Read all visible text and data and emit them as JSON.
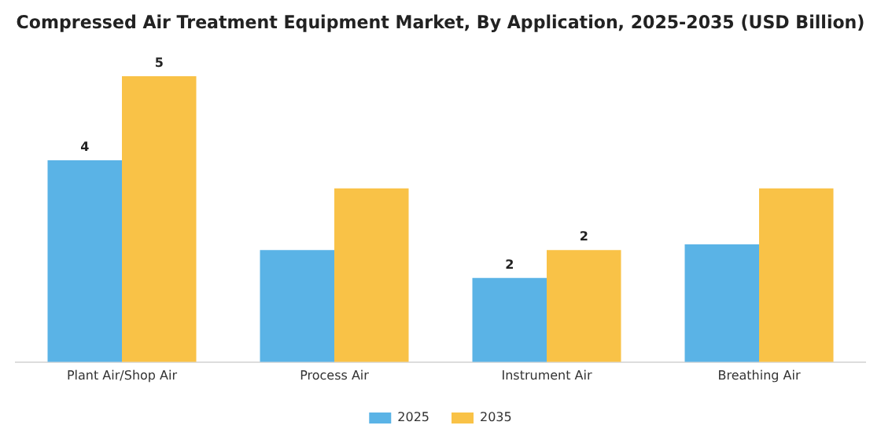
{
  "chart_data": {
    "type": "bar",
    "title": "Compressed Air Treatment Equipment Market, By Application, 2025-2035 (USD Billion)",
    "categories": [
      "Plant Air/Shop Air",
      "Process Air",
      "Instrument Air",
      "Breathing Air"
    ],
    "series": [
      {
        "name": "2025",
        "color": "#5ab3e6",
        "values": [
          3.6,
          2.0,
          1.5,
          2.1
        ],
        "value_labels": [
          "4",
          null,
          "2",
          null
        ]
      },
      {
        "name": "2035",
        "color": "#f9c247",
        "values": [
          5.1,
          3.1,
          2.0,
          3.1
        ],
        "value_labels": [
          "5",
          null,
          "2",
          null
        ]
      }
    ],
    "legend": "bottom",
    "grid": false
  }
}
